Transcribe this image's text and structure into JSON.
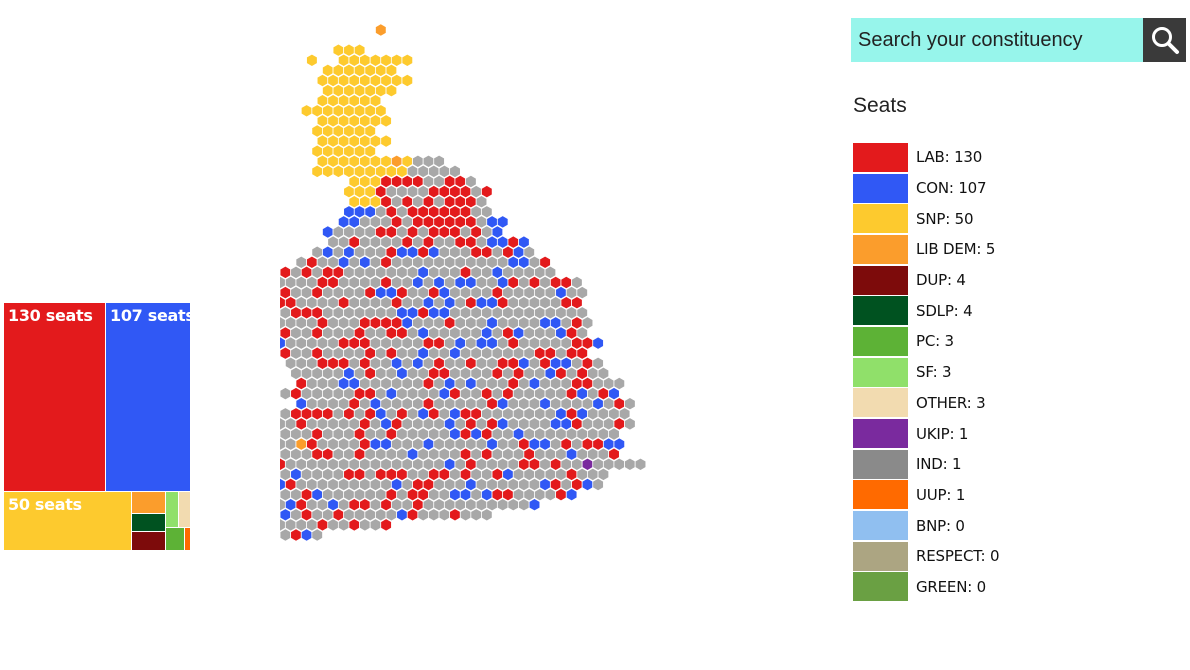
{
  "search": {
    "placeholder": "Search your constituency"
  },
  "icons": {
    "search": "search-icon"
  },
  "legend": {
    "title": "Seats",
    "parties": [
      {
        "code": "LAB",
        "label": "LAB: 130",
        "seats": 130,
        "color": "#e31a1c"
      },
      {
        "code": "CON",
        "label": "CON: 107",
        "seats": 107,
        "color": "#3058f5"
      },
      {
        "code": "SNP",
        "label": "SNP: 50",
        "seats": 50,
        "color": "#fdca2e"
      },
      {
        "code": "LIBDEM",
        "label": "LIB DEM: 5",
        "seats": 5,
        "color": "#fb9d2c"
      },
      {
        "code": "DUP",
        "label": "DUP: 4",
        "seats": 4,
        "color": "#7d0b0b"
      },
      {
        "code": "SDLP",
        "label": "SDLP: 4",
        "seats": 4,
        "color": "#005220"
      },
      {
        "code": "PC",
        "label": "PC: 3",
        "seats": 3,
        "color": "#5db236"
      },
      {
        "code": "SF",
        "label": "SF: 3",
        "seats": 3,
        "color": "#90e06a"
      },
      {
        "code": "OTHER",
        "label": "OTHER: 3",
        "seats": 3,
        "color": "#f2dbb0"
      },
      {
        "code": "UKIP",
        "label": "UKIP: 1",
        "seats": 1,
        "color": "#7a2a9e"
      },
      {
        "code": "IND",
        "label": "IND: 1",
        "seats": 1,
        "color": "#8a8a8a"
      },
      {
        "code": "UUP",
        "label": "UUP: 1",
        "seats": 1,
        "color": "#ff6a00"
      },
      {
        "code": "BNP",
        "label": "BNP: 0",
        "seats": 0,
        "color": "#90bff0"
      },
      {
        "code": "RESPECT",
        "label": "RESPECT: 0",
        "seats": 0,
        "color": "#aca582"
      },
      {
        "code": "GREEN",
        "label": "GREEN: 0",
        "seats": 0,
        "color": "#6aa043"
      }
    ]
  },
  "treemap": {
    "labels": {
      "LAB": "130 seats",
      "CON": "107 seats",
      "SNP": "50 seats"
    }
  },
  "map": {
    "undeclared_color": "#a8a8a8"
  }
}
